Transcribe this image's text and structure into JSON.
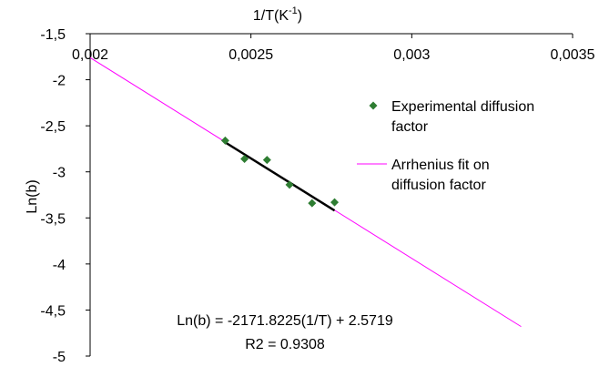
{
  "chart_data": {
    "type": "scatter",
    "xlabel": "1/T(K",
    "xlabel_sup": "-1",
    "xlabel_close": ")",
    "ylabel": "Ln(b)",
    "xlim": [
      0.002,
      0.0035
    ],
    "ylim": [
      -5,
      -1.5
    ],
    "x_axis_position": "top",
    "x_axis_crosses_at": -1.5,
    "xticks": [
      {
        "value": 0.002,
        "label": "0,002"
      },
      {
        "value": 0.0025,
        "label": "0,0025"
      },
      {
        "value": 0.003,
        "label": "0,003"
      },
      {
        "value": 0.0035,
        "label": "0,0035"
      }
    ],
    "yticks": [
      {
        "value": -1.5,
        "label": "-1,5"
      },
      {
        "value": -2,
        "label": "-2"
      },
      {
        "value": -2.5,
        "label": "-2,5"
      },
      {
        "value": -3,
        "label": "-3"
      },
      {
        "value": -3.5,
        "label": "-3,5"
      },
      {
        "value": -4,
        "label": "-4"
      },
      {
        "value": -4.5,
        "label": "-4,5"
      },
      {
        "value": -5,
        "label": "-5"
      }
    ],
    "grid": false,
    "legend_position": "right",
    "series": [
      {
        "name": "Experimental diffusion factor",
        "kind": "markers",
        "marker": "diamond",
        "color": "#2e7d32",
        "x": [
          0.00242,
          0.00248,
          0.00255,
          0.00262,
          0.00269,
          0.00276
        ],
        "y": [
          -2.66,
          -2.86,
          -2.87,
          -3.14,
          -3.34,
          -3.33
        ]
      },
      {
        "name": "Arrhenius fit on diffusion factor",
        "kind": "line",
        "color": "#ff00ff",
        "x": [
          0.002,
          0.00334
        ],
        "y": [
          -1.76,
          -4.68
        ]
      },
      {
        "kind": "trendline",
        "color": "#000000",
        "x": [
          0.00242,
          0.00276
        ],
        "y": [
          -2.68,
          -3.42
        ]
      }
    ],
    "annotations": [
      "Ln(b) = -2171.8225(1/T) + 2.5719",
      "R2 = 0.9308"
    ]
  }
}
